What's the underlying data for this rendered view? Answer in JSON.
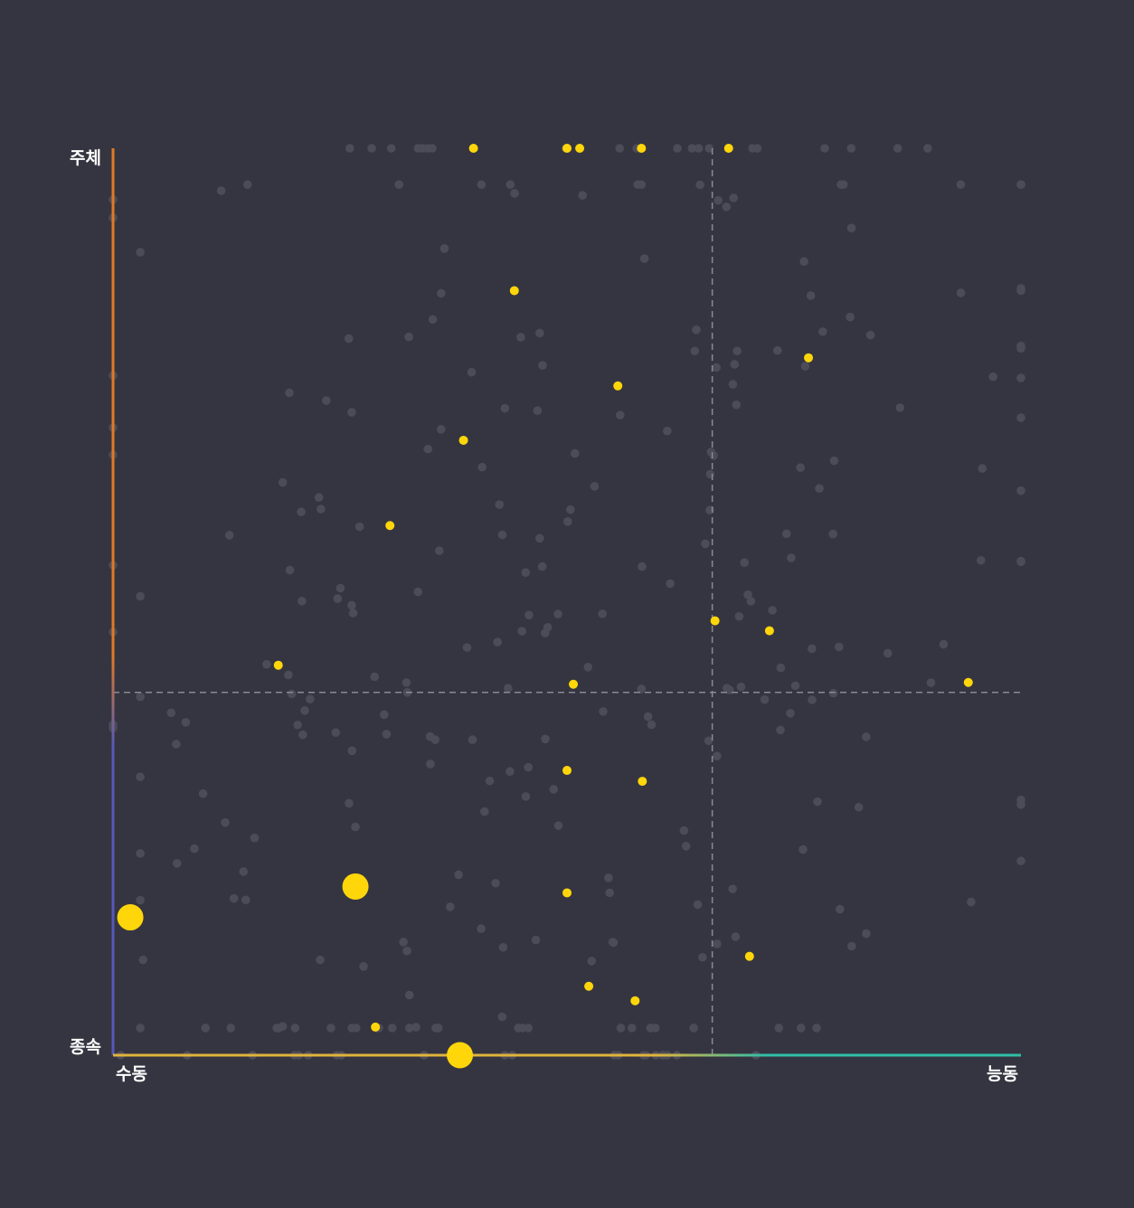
{
  "chart_data": {
    "type": "scatter",
    "title": "",
    "x_axis": {
      "min_label": "수동",
      "max_label": "능동",
      "range": [
        0,
        1
      ],
      "divider": 0.66,
      "colors": {
        "low": "#e0b43c",
        "high": "#2fbfa8"
      }
    },
    "y_axis": {
      "min_label": "종속",
      "max_label": "주체",
      "range": [
        0,
        1
      ],
      "divider": 0.4,
      "colors": {
        "low": "#5558b8",
        "high": "#e07a24"
      }
    },
    "grid": false,
    "colors": {
      "background": "#353541",
      "background_point": "#4c4c58",
      "highlight_point": "#ffd60a",
      "divider_line": "#8a8a94"
    },
    "highlighted_series": [
      {
        "x": 0.397,
        "y": 1.0,
        "size": "small"
      },
      {
        "x": 0.5,
        "y": 1.0,
        "size": "small"
      },
      {
        "x": 0.514,
        "y": 1.0,
        "size": "small"
      },
      {
        "x": 0.582,
        "y": 1.0,
        "size": "small"
      },
      {
        "x": 0.678,
        "y": 1.0,
        "size": "small"
      },
      {
        "x": 0.442,
        "y": 0.843,
        "size": "small"
      },
      {
        "x": 0.766,
        "y": 0.769,
        "size": "small"
      },
      {
        "x": 0.556,
        "y": 0.738,
        "size": "small"
      },
      {
        "x": 0.386,
        "y": 0.678,
        "size": "small"
      },
      {
        "x": 0.305,
        "y": 0.584,
        "size": "small"
      },
      {
        "x": 0.663,
        "y": 0.479,
        "size": "small"
      },
      {
        "x": 0.723,
        "y": 0.468,
        "size": "small"
      },
      {
        "x": 0.182,
        "y": 0.43,
        "size": "small"
      },
      {
        "x": 0.507,
        "y": 0.409,
        "size": "small"
      },
      {
        "x": 0.942,
        "y": 0.411,
        "size": "small"
      },
      {
        "x": 0.5,
        "y": 0.314,
        "size": "small"
      },
      {
        "x": 0.583,
        "y": 0.302,
        "size": "small"
      },
      {
        "x": 0.267,
        "y": 0.186,
        "size": "large"
      },
      {
        "x": 0.019,
        "y": 0.152,
        "size": "large"
      },
      {
        "x": 0.5,
        "y": 0.179,
        "size": "small"
      },
      {
        "x": 0.701,
        "y": 0.109,
        "size": "small"
      },
      {
        "x": 0.524,
        "y": 0.076,
        "size": "small"
      },
      {
        "x": 0.575,
        "y": 0.06,
        "size": "small"
      },
      {
        "x": 0.289,
        "y": 0.031,
        "size": "small"
      },
      {
        "x": 0.382,
        "y": 0.0,
        "size": "large"
      }
    ],
    "background_series_count": 300
  }
}
